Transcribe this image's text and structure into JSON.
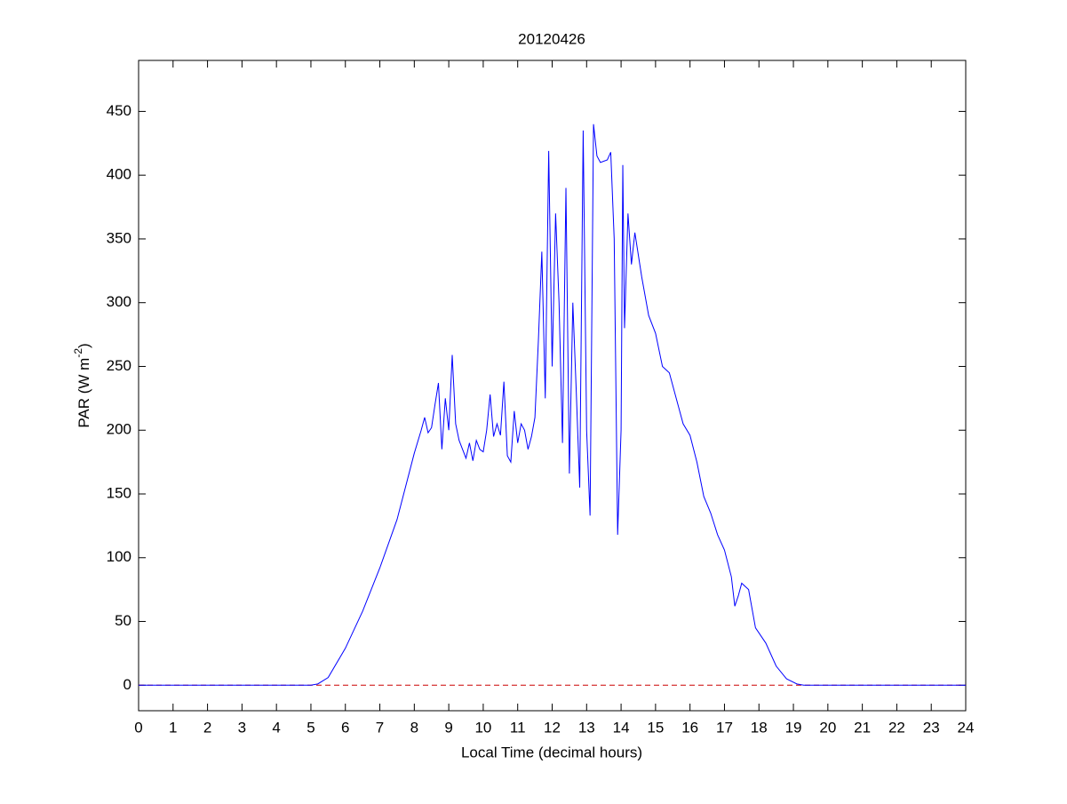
{
  "chart_data": {
    "type": "line",
    "title": "20120426",
    "x_label": "Local Time (decimal hours)",
    "y_label": {
      "main": "PAR (W m",
      "sup": "-2",
      "end": ")"
    },
    "xlim": [
      0,
      24
    ],
    "xticks": [
      0,
      1,
      2,
      3,
      4,
      5,
      6,
      7,
      8,
      9,
      10,
      11,
      12,
      13,
      14,
      15,
      16,
      17,
      18,
      19,
      20,
      21,
      22,
      23,
      24
    ],
    "ylim": [
      -20,
      490
    ],
    "yticks": [
      0,
      50,
      100,
      150,
      200,
      250,
      300,
      350,
      400,
      450
    ],
    "hline": {
      "value": 0,
      "color": "#cc0000"
    },
    "series": [
      {
        "color": "#0000ff",
        "x": [
          0,
          5,
          5.2,
          5.5,
          6,
          6.5,
          7,
          7.5,
          8,
          8.2,
          8.3,
          8.4,
          8.5,
          8.6,
          8.7,
          8.8,
          8.9,
          9.0,
          9.1,
          9.2,
          9.3,
          9.4,
          9.5,
          9.6,
          9.7,
          9.8,
          9.9,
          10.0,
          10.1,
          10.2,
          10.3,
          10.4,
          10.5,
          10.6,
          10.7,
          10.8,
          10.9,
          11.0,
          11.1,
          11.2,
          11.3,
          11.4,
          11.5,
          11.6,
          11.7,
          11.8,
          11.9,
          12.0,
          12.1,
          12.2,
          12.3,
          12.4,
          12.5,
          12.6,
          12.7,
          12.8,
          12.9,
          13.0,
          13.1,
          13.2,
          13.3,
          13.4,
          13.6,
          13.7,
          13.8,
          13.9,
          14.0,
          14.05,
          14.1,
          14.2,
          14.3,
          14.4,
          14.6,
          14.8,
          15.0,
          15.2,
          15.4,
          15.6,
          15.8,
          16.0,
          16.2,
          16.4,
          16.6,
          16.8,
          17.0,
          17.2,
          17.3,
          17.4,
          17.5,
          17.7,
          17.9,
          18.2,
          18.5,
          18.8,
          19.1,
          19.3,
          24
        ],
        "values": [
          0,
          0,
          1,
          6,
          29,
          58,
          92,
          130,
          182,
          200,
          210,
          198,
          202,
          220,
          237,
          185,
          225,
          200,
          259,
          205,
          192,
          185,
          178,
          190,
          176,
          192,
          185,
          183,
          200,
          228,
          195,
          205,
          196,
          238,
          180,
          175,
          215,
          190,
          205,
          200,
          185,
          195,
          210,
          270,
          340,
          225,
          419,
          250,
          370,
          300,
          190,
          390,
          166,
          300,
          230,
          155,
          435,
          200,
          133,
          440,
          415,
          410,
          412,
          418,
          350,
          118,
          200,
          408,
          280,
          370,
          330,
          355,
          320,
          290,
          276,
          250,
          245,
          225,
          205,
          196,
          175,
          148,
          135,
          118,
          106,
          85,
          62,
          70,
          80,
          75,
          45,
          33,
          15,
          5,
          1,
          0,
          0
        ]
      }
    ]
  }
}
